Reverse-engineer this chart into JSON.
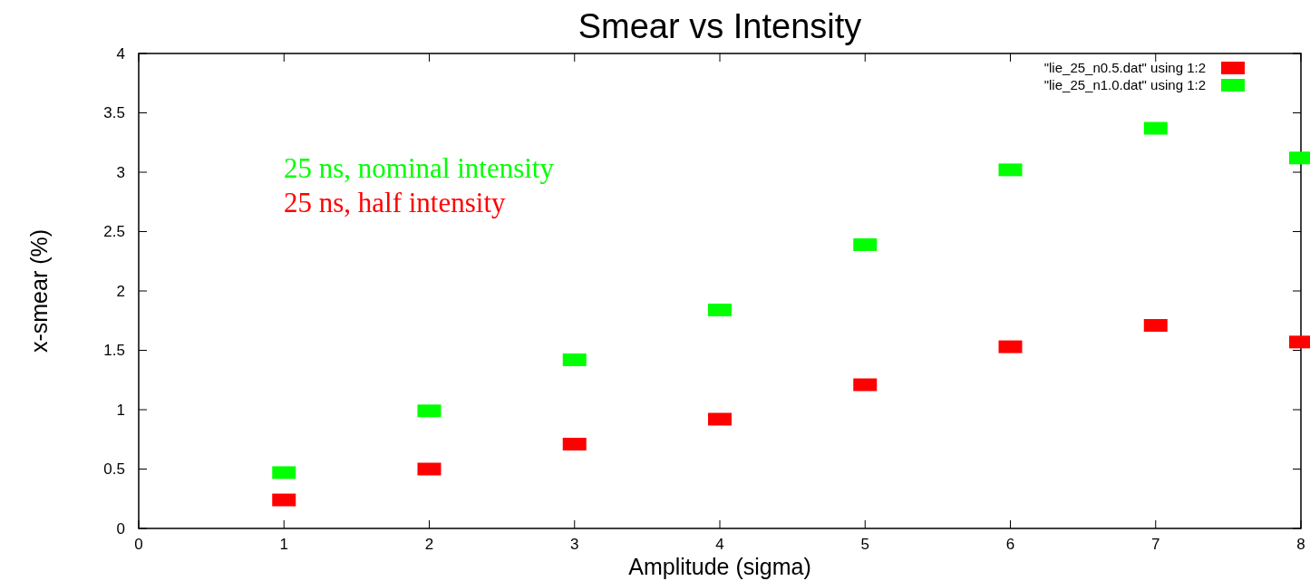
{
  "chart_data": {
    "type": "scatter",
    "title": "Smear vs Intensity",
    "xlabel": "Amplitude (sigma)",
    "ylabel": "x-smear (%)",
    "x": [
      1,
      2,
      3,
      4,
      5,
      6,
      7,
      8
    ],
    "series": [
      {
        "name": "\"lie_25_n0.5.dat\" using 1:2",
        "color": "#ff0000",
        "values": [
          0.24,
          0.5,
          0.71,
          0.92,
          1.21,
          1.53,
          1.71,
          1.57
        ]
      },
      {
        "name": "\"lie_25_n1.0.dat\" using 1:2",
        "color": "#00ff00",
        "values": [
          0.47,
          0.99,
          1.42,
          1.84,
          2.39,
          3.02,
          3.37,
          3.12
        ]
      }
    ],
    "annotations": [
      "25 ns, nominal intensity",
      "25 ns, half intensity"
    ],
    "xlim": [
      0,
      8
    ],
    "xticks": [
      0,
      1,
      2,
      3,
      4,
      5,
      6,
      7,
      8
    ],
    "ylim": [
      0,
      4
    ],
    "yticks": [
      0,
      {
        "value": 0.5,
        "label": "0.5"
      },
      1,
      {
        "value": 1.5,
        "label": "1.5"
      },
      2,
      {
        "value": 2.5,
        "label": "2.5"
      },
      3,
      {
        "value": 3.5,
        "label": "3.5"
      },
      4
    ],
    "marker": "square",
    "legend": "top right",
    "grid": false
  }
}
